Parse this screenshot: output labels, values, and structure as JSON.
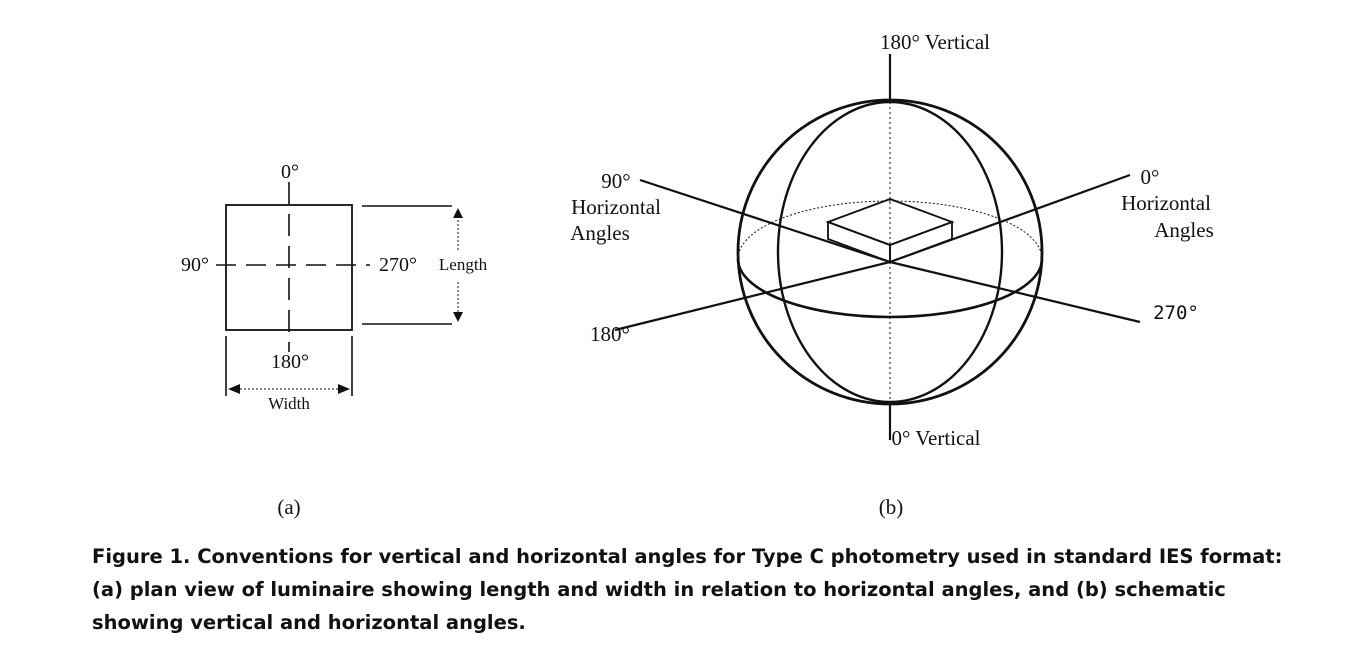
{
  "panel_a": {
    "label_0": "0°",
    "label_90": "90°",
    "label_270": "270°",
    "label_180": "180°",
    "length_label": "Length",
    "width_label": "Width",
    "sub_caption": "(a)"
  },
  "panel_b": {
    "vertical_top": "180° Vertical",
    "vertical_bottom": "0° Vertical",
    "left_90_line1": "90°",
    "left_90_line2": "Horizontal",
    "left_90_line3": "Angles",
    "left_180": "180°",
    "right_0_line1": "0°",
    "right_0_line2": "Horizontal",
    "right_0_line3": "Angles",
    "right_270": "270°",
    "sub_caption": "(b)"
  },
  "caption": "Figure 1. Conventions for vertical and horizontal angles for Type C photometry used in standard IES format: (a) plan view of luminaire showing length and width in relation to horizontal angles, and (b) schematic showing vertical and horizontal angles.",
  "colors": {
    "ink": "#111111",
    "background": "#ffffff"
  }
}
